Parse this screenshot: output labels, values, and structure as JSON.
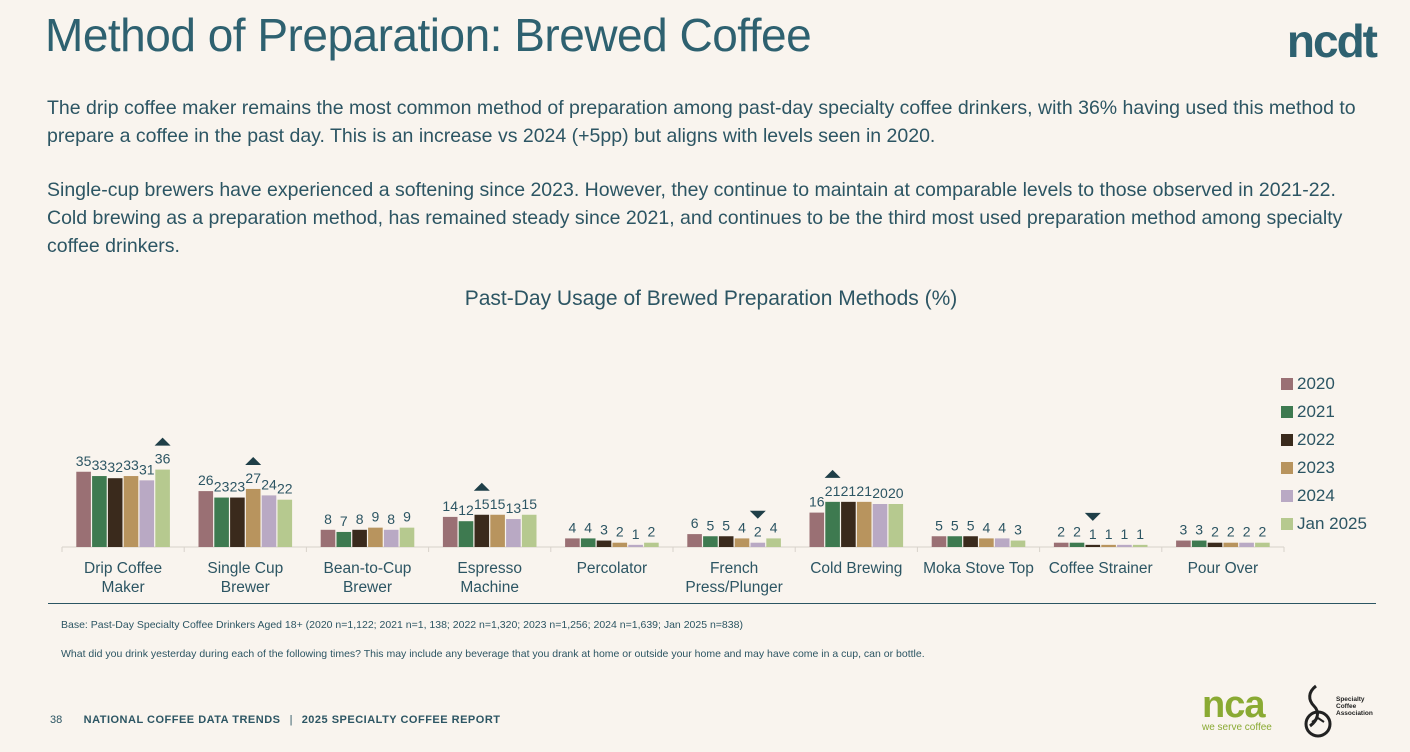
{
  "header": {
    "title": "Method of Preparation: Brewed Coffee",
    "logo_text": "ncdt",
    "paragraph1": "The drip coffee maker remains the most common method of preparation among past-day specialty coffee drinkers, with 36% having used this method to prepare a coffee in the past day. This is an increase vs 2024 (+5pp) but aligns with levels seen in 2020.",
    "paragraph2": "Single-cup brewers have experienced a softening since 2023. However, they continue to maintain at comparable levels to those observed in 2021-22. Cold brewing as a preparation method, has remained steady since 2021, and continues to be the third most used preparation method among specialty coffee drinkers."
  },
  "chart_data": {
    "type": "bar",
    "title": "Past-Day Usage of Brewed Preparation Methods (%)",
    "categories": [
      "Drip Coffee\nMaker",
      "Single Cup\nBrewer",
      "Bean-to-Cup\nBrewer",
      "Espresso\nMachine",
      "Percolator",
      "French\nPress/Plunger",
      "Cold Brewing",
      "Moka Stove Top",
      "Coffee Strainer",
      "Pour Over"
    ],
    "series": [
      {
        "name": "2020",
        "color": "#9a7074",
        "values": [
          35,
          26,
          8,
          14,
          4,
          6,
          16,
          5,
          2,
          3
        ]
      },
      {
        "name": "2021",
        "color": "#3e7a50",
        "values": [
          33,
          23,
          7,
          12,
          4,
          5,
          21,
          5,
          2,
          3
        ]
      },
      {
        "name": "2022",
        "color": "#3a2a1c",
        "values": [
          32,
          23,
          8,
          15,
          3,
          5,
          21,
          5,
          1,
          2
        ]
      },
      {
        "name": "2023",
        "color": "#b8945e",
        "values": [
          33,
          27,
          9,
          15,
          2,
          4,
          21,
          4,
          1,
          2
        ]
      },
      {
        "name": "2024",
        "color": "#b9a9c4",
        "values": [
          31,
          24,
          8,
          13,
          1,
          2,
          20,
          4,
          1,
          2
        ]
      },
      {
        "name": "Jan 2025",
        "color": "#b6c98f",
        "values": [
          36,
          22,
          9,
          15,
          2,
          4,
          20,
          3,
          1,
          2
        ]
      }
    ],
    "significance_markers": [
      {
        "category": "Drip Coffee\nMaker",
        "series": "Jan 2025",
        "direction": "up"
      },
      {
        "category": "Single Cup\nBrewer",
        "series": "2023",
        "direction": "up"
      },
      {
        "category": "Espresso\nMachine",
        "series": "2022",
        "direction": "up"
      },
      {
        "category": "French\nPress/Plunger",
        "series": "2024",
        "direction": "down"
      },
      {
        "category": "Cold Brewing",
        "series": "2021",
        "direction": "up"
      },
      {
        "category": "Coffee Strainer",
        "series": "2022",
        "direction": "down"
      }
    ],
    "legend_position": "right",
    "grid": false
  },
  "notes": {
    "base": "Base: Past-Day Specialty Coffee Drinkers Aged 18+ (2020 n=1,122; 2021 n=1, 138; 2022 n=1,320; 2023 n=1,256; 2024 n=1,639; Jan 2025 n=838)",
    "question": "What did you drink yesterday during each of the following times? This may include any beverage that you drank at home or outside your home and may have come in a cup, can or bottle."
  },
  "footer": {
    "page_number": "38",
    "report_left": "NATIONAL COFFEE DATA TRENDS",
    "separator": "|",
    "report_right": "2025 SPECIALTY COFFEE REPORT",
    "nca_logo": "nca",
    "nca_tagline": "we serve coffee",
    "sca_text": "Specialty\nCoffee\nAssociation"
  }
}
